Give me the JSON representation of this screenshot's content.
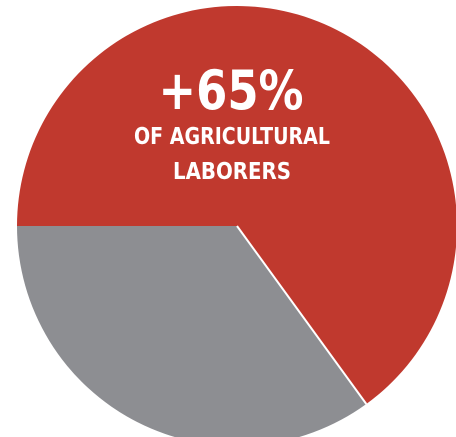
{
  "chart_data": {
    "type": "pie",
    "slices": [
      {
        "value": 65,
        "color": "#c0392e"
      },
      {
        "value": 35,
        "color": "#8d8e92"
      }
    ],
    "annotations": {
      "percent": "+65%",
      "line1": "OF AGRICULTURAL",
      "line2": "LABORERS"
    }
  }
}
